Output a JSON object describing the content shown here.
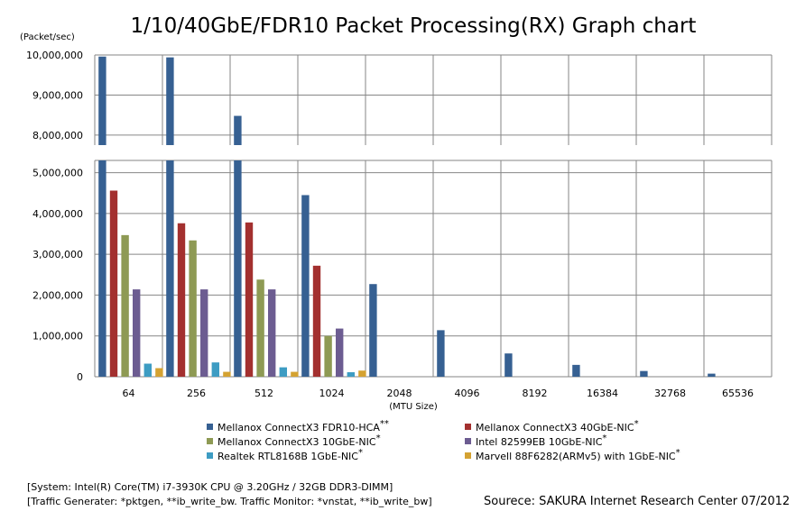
{
  "chart_data": {
    "type": "bar",
    "title": "1/10/40GbE/FDR10 Packet Processing(RX) Graph chart",
    "ylabel": "(Packet/sec)",
    "xlabel": "(MTU Size)",
    "categories": [
      "64",
      "256",
      "512",
      "1024",
      "2048",
      "4096",
      "8192",
      "16384",
      "32768",
      "65536"
    ],
    "y_ticks_upper": [
      "10,000,000",
      "9,000,000",
      "8,000,000"
    ],
    "y_ticks_lower": [
      "5,000,000",
      "4,000,000",
      "3,000,000",
      "2,000,000",
      "1,000,000",
      "0"
    ],
    "ylim_upper": [
      7750000,
      10000000
    ],
    "ylim_lower": [
      0,
      5300000
    ],
    "grid": true,
    "axis_break": true,
    "legend_position": "bottom",
    "series": [
      {
        "name": "Mellanox ConnectX3 FDR10-HCA",
        "marker": "**",
        "color": "#366092",
        "values": [
          9960000,
          9940000,
          8480000,
          4450000,
          2270000,
          1140000,
          570000,
          290000,
          140000,
          75000
        ]
      },
      {
        "name": "Mellanox ConnectX3 40GbE-NIC",
        "marker": "*",
        "color": "#A3302F",
        "values": [
          4560000,
          3760000,
          3780000,
          2720000,
          null,
          null,
          null,
          null,
          null,
          null
        ]
      },
      {
        "name": "Mellanox ConnectX3 10GbE-NIC",
        "marker": "*",
        "color": "#8E9A54",
        "values": [
          3470000,
          3340000,
          2380000,
          1000000,
          null,
          null,
          null,
          null,
          null,
          null
        ]
      },
      {
        "name": "Intel 82599EB 10GbE-NIC",
        "marker": "*",
        "color": "#6C5C91",
        "values": [
          2140000,
          2140000,
          2140000,
          1180000,
          null,
          null,
          null,
          null,
          null,
          null
        ]
      },
      {
        "name": "Realtek RTL8168B 1GbE-NIC",
        "marker": "*",
        "color": "#3D9CC3",
        "values": [
          320000,
          350000,
          230000,
          110000,
          null,
          null,
          null,
          null,
          null,
          null
        ]
      },
      {
        "name": "Marvell 88F6282(ARMv5) with 1GbE-NIC",
        "marker": "*",
        "color": "#D4A232",
        "values": [
          210000,
          120000,
          120000,
          150000,
          null,
          null,
          null,
          null,
          null,
          null
        ]
      }
    ]
  },
  "footer": {
    "system": "[System: Intel(R) Core(TM) i7-3930K CPU @ 3.20GHz / 32GB DDR3-DIMM]",
    "traffic": "[Traffic Generater: *pktgen, **ib_write_bw. Traffic Monitor: *vnstat, **ib_write_bw]",
    "source": "Sourece: SAKURA Internet Research Center 07/2012"
  }
}
